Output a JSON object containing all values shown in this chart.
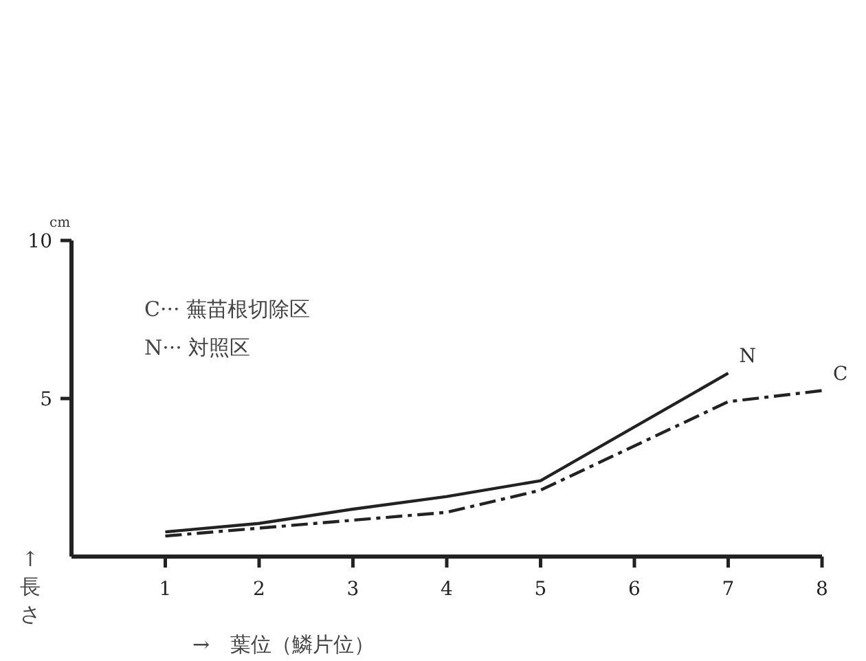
{
  "chart_data": {
    "type": "line",
    "x": [
      1,
      2,
      3,
      4,
      5,
      6,
      7,
      8
    ],
    "xlim": [
      0,
      8
    ],
    "xticks": [
      1,
      2,
      3,
      4,
      5,
      6,
      7,
      8
    ],
    "ylim": [
      0,
      10
    ],
    "yticks": [
      5,
      10
    ],
    "xlabel": "→　葉位（鱗片位）",
    "ylabel": "↑長さ",
    "grid": false,
    "marker": "none",
    "annotations": [
      "cm",
      "C··· 蕪苗根切除区",
      "N··· 対照区"
    ],
    "series": [
      {
        "name": "N",
        "color": "#222222",
        "line_style": "solid",
        "values": [
          0.78,
          1.05,
          1.5,
          1.9,
          2.4,
          4.1,
          5.8,
          null
        ]
      },
      {
        "name": "C",
        "color": "#222222",
        "line_style": "dashdot",
        "values": [
          0.65,
          0.9,
          1.15,
          1.4,
          2.1,
          3.5,
          4.9,
          5.25
        ]
      }
    ]
  }
}
